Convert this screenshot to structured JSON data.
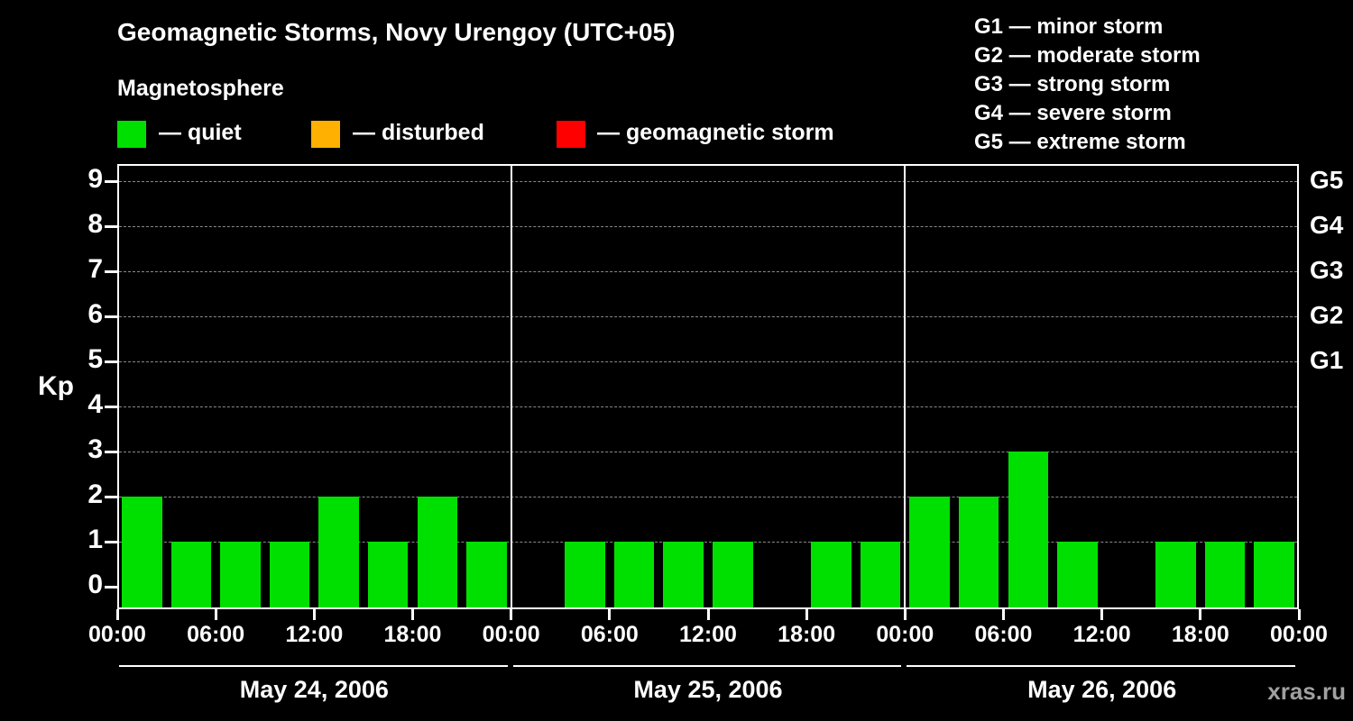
{
  "title": "Geomagnetic Storms, Novy Urengoy (UTC+05)",
  "subtitle": "Magnetosphere",
  "legend": {
    "quiet": {
      "label": "— quiet",
      "color": "#00e000"
    },
    "disturbed": {
      "label": "— disturbed",
      "color": "#ffb000"
    },
    "storm": {
      "label": "— geomagnetic storm",
      "color": "#ff0000"
    }
  },
  "g_legend": [
    "G1 — minor storm",
    "G2 — moderate storm",
    "G3 — strong storm",
    "G4 — severe storm",
    "G5 — extreme storm"
  ],
  "axis": {
    "ylabel": "Kp"
  },
  "watermark": "xras.ru",
  "chart_data": {
    "type": "bar",
    "title": "Geomagnetic Storms, Novy Urengoy (UTC+05)",
    "ylabel": "Kp",
    "ylim": [
      0,
      9.5
    ],
    "grid": "dashed horizontal",
    "bar_color": "#00e000",
    "hours_per_bar": 3,
    "y_ticks": [
      0,
      1,
      2,
      3,
      4,
      5,
      6,
      7,
      8,
      9
    ],
    "right_axis": [
      {
        "kp": 5,
        "label": "G1"
      },
      {
        "kp": 6,
        "label": "G2"
      },
      {
        "kp": 7,
        "label": "G3"
      },
      {
        "kp": 8,
        "label": "G4"
      },
      {
        "kp": 9,
        "label": "G5"
      }
    ],
    "x_tick_labels": [
      "00:00",
      "06:00",
      "12:00",
      "18:00",
      "00:00",
      "06:00",
      "12:00",
      "18:00",
      "00:00",
      "06:00",
      "12:00",
      "18:00",
      "00:00"
    ],
    "days": [
      {
        "date": "May 24, 2006",
        "values": [
          2,
          1,
          1,
          1,
          2,
          1,
          2,
          1
        ]
      },
      {
        "date": "May 25, 2006",
        "values": [
          0,
          1,
          1,
          1,
          1,
          0,
          1,
          1
        ]
      },
      {
        "date": "May 26, 2006",
        "values": [
          2,
          2,
          3,
          1,
          0,
          1,
          1,
          1
        ]
      }
    ]
  }
}
